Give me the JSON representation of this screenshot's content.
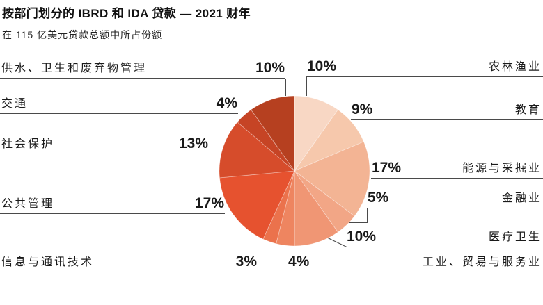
{
  "header": {
    "title": "按部门划分的 IBRD 和 IDA 贷款 — 2021 财年",
    "subtitle": "在 115 亿美元贷款总额中所占份额"
  },
  "chart_data": {
    "type": "pie",
    "title": "按部门划分的 IBRD 和 IDA 贷款 — 2021 财年",
    "subtitle": "在 115 亿美元贷款总额中所占份额",
    "total_lending_billion_usd": 115,
    "values_unit": "%",
    "start_angle_deg": 0,
    "direction": "clockwise",
    "slices": [
      {
        "label": "农林渔业",
        "value": 10,
        "color": "#F8D7C4"
      },
      {
        "label": "教育",
        "value": 9,
        "color": "#F6C8AC"
      },
      {
        "label": "能源与采掘业",
        "value": 17,
        "color": "#F3B494"
      },
      {
        "label": "金融业",
        "value": 5,
        "color": "#F2A686"
      },
      {
        "label": "医疗卫生",
        "value": 10,
        "color": "#F09674"
      },
      {
        "label": "工业、贸易与服务业",
        "value": 4,
        "color": "#EE8560"
      },
      {
        "label": "信息与通讯技术",
        "value": 3,
        "color": "#EB724C"
      },
      {
        "label": "公共管理",
        "value": 17,
        "color": "#E6522F"
      },
      {
        "label": "社会保护",
        "value": 13,
        "color": "#D64C2B"
      },
      {
        "label": "交通",
        "value": 4,
        "color": "#C64425"
      },
      {
        "label": "供水、卫生和废弃物管理",
        "value": 10,
        "color": "#B64020"
      }
    ]
  },
  "left_labels": [
    {
      "label": "供水、卫生和废弃物管理",
      "pct": "10%"
    },
    {
      "label": "交通",
      "pct": "4%"
    },
    {
      "label": "社会保护",
      "pct": "13%"
    },
    {
      "label": "公共管理",
      "pct": "17%"
    },
    {
      "label": "信息与通讯技术",
      "pct": "3%"
    }
  ],
  "right_labels": [
    {
      "pct": "10%",
      "label": "农林渔业"
    },
    {
      "pct": "9%",
      "label": "教育"
    },
    {
      "pct": "17%",
      "label": "能源与采掘业"
    },
    {
      "pct": "5%",
      "label": "金融业"
    },
    {
      "pct": "10%",
      "label": "医疗卫生"
    },
    {
      "pct": "4%",
      "label": "工业、贸易与服务业"
    }
  ]
}
